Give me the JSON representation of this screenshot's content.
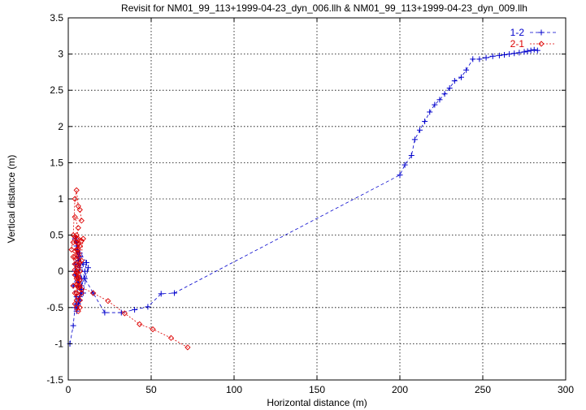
{
  "chart_data": {
    "type": "scatter",
    "title": "Revisit for NM01_99_113+1999-04-23_dyn_006.llh & NM01_99_113+1999-04-23_dyn_009.llh",
    "xlabel": "Horizontal distance (m)",
    "ylabel": "Vertical distance (m)",
    "xlim": [
      0,
      300
    ],
    "ylim": [
      -1.5,
      3.5
    ],
    "x_ticks": [
      0,
      50,
      100,
      150,
      200,
      250,
      300
    ],
    "y_ticks": [
      -1.5,
      -1,
      -0.5,
      0,
      0.5,
      1,
      1.5,
      2,
      2.5,
      3,
      3.5
    ],
    "grid": true,
    "legend_position": "top-right",
    "series": [
      {
        "name": "1-2",
        "color": "#0000cc",
        "marker": "plus",
        "line": "dashed",
        "x": [
          1,
          3,
          4,
          5,
          6,
          4,
          6,
          5,
          7,
          4,
          6,
          8,
          5,
          3,
          7,
          6,
          9,
          4,
          8,
          6,
          5,
          7,
          10,
          11,
          5,
          4,
          7,
          6,
          9,
          12,
          8,
          6,
          5,
          7,
          8,
          6,
          5,
          6,
          10,
          15,
          22,
          32,
          40,
          48,
          56,
          64,
          200,
          203,
          207,
          209,
          212,
          215,
          218,
          221,
          224,
          227,
          230,
          233,
          237,
          240,
          244,
          248,
          252,
          256,
          260,
          263,
          266,
          269,
          272,
          275,
          277,
          279,
          281,
          283
        ],
        "y": [
          -1.0,
          -0.75,
          -0.5,
          -0.35,
          -0.2,
          0.0,
          0.15,
          0.3,
          0.25,
          0.1,
          -0.1,
          -0.3,
          -0.45,
          -0.2,
          0.05,
          0.2,
          0.1,
          -0.05,
          -0.25,
          -0.4,
          -0.5,
          -0.35,
          0.0,
          0.12,
          0.35,
          0.45,
          0.2,
          -0.15,
          -0.3,
          0.05,
          -0.2,
          -0.45,
          -0.55,
          -0.4,
          -0.1,
          0.1,
          0.4,
          0.2,
          -0.1,
          -0.3,
          -0.57,
          -0.57,
          -0.53,
          -0.49,
          -0.31,
          -0.3,
          1.33,
          1.47,
          1.6,
          1.82,
          1.95,
          2.07,
          2.2,
          2.3,
          2.37,
          2.45,
          2.53,
          2.63,
          2.68,
          2.78,
          2.93,
          2.93,
          2.95,
          2.97,
          2.98,
          2.99,
          3.0,
          3.01,
          3.02,
          3.03,
          3.04,
          3.05,
          3.06,
          3.05
        ]
      },
      {
        "name": "2-1",
        "color": "#dd0000",
        "marker": "diamond",
        "line": "dotted",
        "x": [
          2,
          3,
          4,
          5,
          6,
          7,
          8,
          4,
          6,
          5,
          3,
          7,
          5,
          6,
          4,
          8,
          5,
          6,
          7,
          4,
          5,
          6,
          3,
          8,
          5,
          6,
          7,
          4,
          5,
          6,
          7,
          5,
          4,
          6,
          8,
          5,
          6,
          7,
          5,
          4,
          6,
          5,
          7,
          6,
          4,
          5,
          6,
          7,
          5,
          6,
          3,
          4,
          5,
          6,
          7,
          8,
          6,
          5,
          9,
          5,
          4,
          6,
          15,
          24,
          34,
          43,
          51,
          62,
          72
        ],
        "y": [
          0.3,
          0.5,
          1.0,
          1.12,
          0.9,
          0.85,
          0.7,
          0.75,
          0.6,
          0.45,
          0.4,
          0.35,
          0.3,
          0.25,
          0.2,
          0.15,
          0.1,
          0.05,
          0.0,
          -0.05,
          -0.1,
          -0.15,
          -0.2,
          -0.25,
          -0.3,
          -0.35,
          -0.4,
          -0.45,
          -0.5,
          -0.55,
          -0.5,
          0.5,
          0.48,
          0.45,
          0.42,
          0.4,
          0.38,
          0.35,
          0.3,
          0.28,
          0.22,
          0.18,
          0.12,
          0.08,
          0.02,
          -0.02,
          -0.08,
          -0.12,
          -0.18,
          -0.22,
          0.2,
          0.1,
          0.0,
          -0.1,
          -0.2,
          -0.3,
          0.3,
          0.4,
          0.45,
          -0.4,
          -0.3,
          -0.2,
          -0.3,
          -0.41,
          -0.58,
          -0.73,
          -0.8,
          -0.92,
          -1.05
        ]
      }
    ]
  }
}
